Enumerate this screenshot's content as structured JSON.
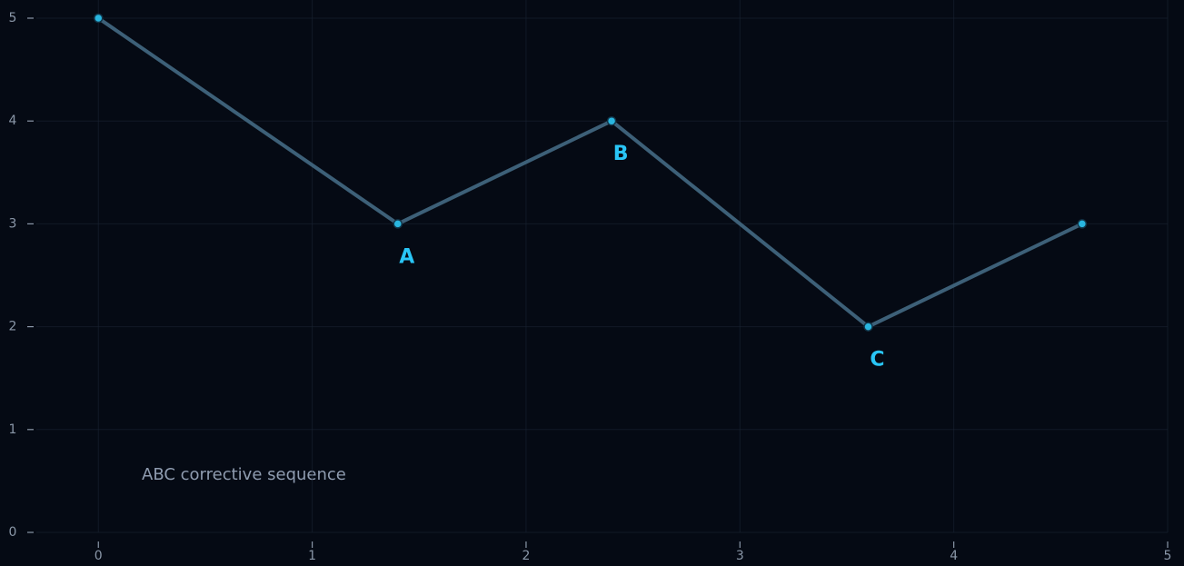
{
  "chart_data": {
    "type": "line",
    "x": [
      0,
      1.4,
      2.4,
      3.6,
      4.6
    ],
    "values": [
      5,
      3,
      4,
      2,
      3
    ],
    "color": "#3d6078",
    "marker_color": "#29b6e0",
    "xlim": [
      -0.29,
      5
    ],
    "xticks": [
      0,
      1,
      2,
      3,
      4,
      5
    ],
    "ylim": [
      0,
      5
    ],
    "yticks": [
      0,
      1,
      2,
      3,
      4,
      5
    ],
    "grid": true,
    "annotations": [
      {
        "text": "A",
        "x": 1.4,
        "y": 3
      },
      {
        "text": "B",
        "x": 2.4,
        "y": 4
      },
      {
        "text": "C",
        "x": 3.6,
        "y": 2
      }
    ],
    "caption": "ABC corrective sequence"
  }
}
